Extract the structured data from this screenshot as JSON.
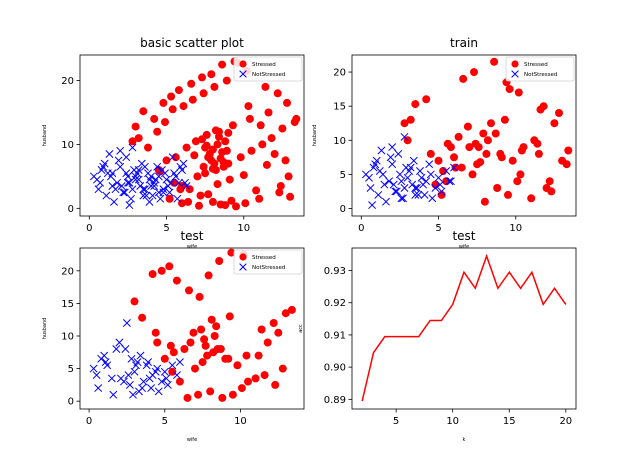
{
  "chart_data": [
    {
      "type": "scatter",
      "title": "basic scatter plot",
      "xlabel": "wife",
      "ylabel": "husband",
      "xlim": [
        -0.6,
        13.9
      ],
      "ylim": [
        -1.2,
        24
      ],
      "xticks": [
        0,
        5,
        10
      ],
      "yticks": [
        0,
        10,
        20
      ],
      "legend": "top-right",
      "series": [
        {
          "name": "Stressed",
          "marker": "circle",
          "color": "#ff0000",
          "x": [
            6.5,
            7.2,
            8.0,
            8.8,
            9.5,
            10.1,
            11.0,
            12.3,
            13.0,
            5.5,
            6.0,
            7.0,
            7.5,
            8.2,
            8.7,
            9.0,
            9.8,
            10.5,
            11.2,
            11.8,
            12.5,
            13.3,
            4.5,
            5.0,
            5.6,
            6.3,
            6.9,
            7.6,
            8.4,
            9.3,
            10.4,
            11.6,
            12.8,
            3.0,
            3.5,
            4.2,
            4.8,
            5.3,
            5.8,
            6.6,
            7.3,
            7.9,
            8.6,
            9.4,
            10.2,
            11.4,
            12.2,
            13.4,
            2.8,
            3.2,
            3.8,
            4.4,
            4.9,
            5.4,
            6.1,
            6.7,
            7.4,
            8.1,
            8.9,
            9.6,
            10.3,
            11.1,
            12.0,
            12.7,
            5.2,
            6.4,
            7.7,
            8.3,
            9.1,
            10.0,
            11.5,
            12.9,
            6.0,
            7.1,
            8.5,
            9.2,
            4.6,
            5.9,
            10.8,
            12.4,
            7.8,
            8.0,
            8.3,
            7.9,
            8.6,
            8.4,
            8.1,
            7.6,
            8.8,
            7.4,
            8.2,
            7.7,
            8.9,
            8.0,
            7.3,
            8.5,
            6.8,
            9.0,
            7.5,
            8.7
          ],
          "y": [
            3.0,
            2.0,
            1.0,
            0.5,
            0.3,
            0.8,
            1.5,
            2.5,
            1.8,
            4.0,
            3.5,
            5.0,
            5.5,
            6.0,
            6.5,
            7.0,
            8.0,
            9.0,
            10.0,
            11.0,
            12.5,
            13.5,
            6.0,
            7.5,
            8.0,
            9.5,
            10.5,
            11.5,
            12.0,
            13.0,
            14.0,
            15.0,
            16.5,
            12.8,
            15.2,
            14.0,
            16.5,
            17.5,
            18.5,
            19.5,
            20.5,
            21.0,
            22.5,
            23.0,
            21.5,
            19.0,
            18.0,
            14.0,
            10.5,
            11.0,
            9.5,
            12.0,
            13.5,
            15.5,
            16.0,
            17.0,
            18.0,
            19.0,
            20.0,
            22.8,
            16.0,
            13.0,
            8.5,
            7.5,
            1.5,
            1.0,
            2.2,
            3.8,
            4.5,
            5.2,
            6.8,
            5.0,
            0.8,
            0.4,
            0.6,
            1.2,
            5.8,
            3.0,
            2.8,
            3.5,
            8.5,
            9.2,
            10.0,
            7.5,
            8.8,
            11.2,
            7.0,
            9.8,
            10.5,
            6.5,
            12.2,
            8.0,
            9.0,
            6.2,
            10.8,
            7.8,
            8.3,
            11.8,
            9.5,
            7.2
          ]
        },
        {
          "name": "NotStressed",
          "marker": "x",
          "color": "#0000ff",
          "x": [
            0.3,
            0.5,
            0.8,
            1.0,
            1.2,
            1.5,
            1.8,
            2.0,
            2.3,
            2.5,
            2.8,
            3.0,
            3.2,
            3.5,
            3.8,
            4.0,
            4.2,
            4.5,
            4.8,
            5.0,
            5.2,
            5.5,
            5.8,
            6.0,
            6.3,
            0.6,
            1.1,
            1.6,
            2.1,
            2.6,
            3.1,
            3.6,
            4.1,
            4.6,
            5.1,
            5.6,
            6.1,
            0.9,
            1.4,
            1.9,
            2.4,
            2.9,
            3.4,
            3.9,
            4.4,
            4.9,
            5.4,
            5.9,
            2.2,
            2.7,
            3.3,
            3.7,
            4.3,
            4.7,
            5.3,
            1.3,
            2.0,
            2.8,
            3.5,
            4.0,
            4.8,
            2.5,
            3.0,
            3.6,
            4.2,
            1.7,
            2.4,
            3.2,
            3.9,
            4.5,
            0.7,
            1.5,
            2.6,
            5.7,
            6.2
          ],
          "y": [
            5.0,
            4.5,
            6.0,
            7.0,
            5.5,
            3.5,
            4.0,
            6.5,
            2.5,
            5.0,
            3.0,
            4.5,
            6.0,
            2.0,
            5.5,
            3.5,
            4.0,
            5.0,
            3.0,
            4.5,
            2.5,
            5.5,
            4.0,
            6.0,
            3.5,
            3.0,
            2.0,
            1.0,
            3.5,
            4.0,
            5.5,
            3.0,
            2.0,
            1.5,
            3.5,
            5.0,
            7.0,
            6.5,
            5.0,
            7.5,
            8.0,
            6.0,
            7.0,
            4.5,
            6.5,
            5.5,
            8.0,
            6.5,
            2.5,
            1.5,
            3.5,
            2.0,
            4.5,
            6.0,
            4.0,
            8.5,
            9.0,
            9.5,
            3.0,
            5.0,
            2.5,
            4.0,
            5.0,
            6.5,
            3.5,
            3.0,
            5.5,
            4.5,
            1.0,
            2.5,
            4.0,
            5.5,
            0.5,
            1.5,
            4.0
          ]
        }
      ]
    },
    {
      "type": "scatter",
      "title": "train",
      "xlabel": "wife",
      "ylabel": "husband",
      "xlim": [
        -0.6,
        13.9
      ],
      "ylim": [
        -1.1,
        22.5
      ],
      "xticks": [
        0,
        5,
        10
      ],
      "yticks": [
        0,
        5,
        10,
        15,
        20
      ],
      "legend": "top-right",
      "series": [
        {
          "name": "Stressed",
          "marker": "circle",
          "color": "#ff0000",
          "x": [
            6.5,
            7.2,
            8.0,
            8.8,
            9.5,
            10.1,
            11.0,
            12.3,
            13.0,
            5.5,
            6.0,
            7.0,
            7.5,
            8.2,
            8.7,
            9.0,
            9.8,
            10.5,
            11.2,
            11.8,
            12.5,
            13.3,
            4.5,
            5.0,
            5.6,
            6.3,
            6.9,
            7.6,
            8.4,
            9.3,
            10.4,
            11.6,
            12.8,
            3.0,
            3.5,
            4.2,
            4.8,
            5.3,
            5.8,
            6.6,
            7.3,
            7.9,
            8.6,
            9.4,
            10.2,
            11.4,
            12.2,
            13.4,
            2.8,
            3.2,
            6.1,
            7.4,
            8.1,
            9.6,
            10.3,
            12.0,
            5.2,
            7.7,
            9.1,
            11.5
          ],
          "y": [
            6.0,
            5.0,
            1.0,
            3.0,
            2.0,
            4.0,
            1.5,
            2.5,
            7.0,
            4.0,
            7.5,
            9.0,
            6.5,
            10.0,
            11.0,
            8.0,
            7.0,
            9.0,
            10.0,
            15.0,
            12.5,
            6.5,
            8.0,
            7.0,
            9.5,
            10.5,
            12.0,
            9.0,
            12.5,
            13.0,
            8.5,
            14.5,
            14.0,
            10.0,
            15.3,
            16.0,
            3.5,
            5.5,
            9.0,
            19.0,
            20.0,
            11.0,
            21.5,
            18.5,
            17.0,
            9.5,
            4.0,
            8.5,
            12.5,
            13.0,
            6.0,
            9.5,
            8.0,
            17.5,
            5.0,
            3.0,
            2.0,
            6.8,
            7.5,
            8.0
          ]
        },
        {
          "name": "NotStressed",
          "marker": "x",
          "color": "#0000ff",
          "x": [
            0.3,
            0.5,
            0.8,
            1.0,
            1.2,
            1.5,
            1.8,
            2.0,
            2.3,
            2.5,
            2.8,
            3.0,
            3.2,
            3.5,
            3.8,
            4.0,
            4.2,
            4.5,
            4.8,
            5.0,
            5.2,
            5.5,
            5.8,
            6.0,
            0.6,
            1.1,
            1.6,
            2.1,
            2.6,
            3.1,
            3.6,
            4.1,
            4.6,
            5.1,
            0.9,
            1.4,
            1.9,
            2.4,
            2.9,
            3.4,
            3.9,
            4.4,
            2.2,
            2.7,
            3.3,
            3.7,
            1.3,
            2.0,
            2.8,
            3.5,
            0.7,
            2.6,
            5.7
          ],
          "y": [
            5.0,
            4.5,
            6.0,
            7.0,
            5.5,
            3.5,
            4.0,
            6.5,
            2.5,
            5.0,
            3.0,
            4.5,
            6.0,
            2.0,
            5.5,
            3.5,
            4.0,
            5.0,
            3.0,
            4.5,
            2.5,
            5.5,
            4.0,
            6.0,
            3.0,
            2.0,
            1.0,
            3.5,
            4.0,
            5.5,
            3.0,
            2.0,
            1.5,
            3.5,
            6.5,
            5.0,
            7.5,
            8.0,
            6.0,
            7.0,
            4.5,
            6.5,
            2.5,
            1.5,
            3.5,
            2.0,
            8.5,
            9.0,
            10.5,
            3.0,
            0.5,
            1.5,
            4.0
          ]
        }
      ]
    },
    {
      "type": "scatter",
      "title": "test",
      "xlabel": "wife",
      "ylabel": "husband",
      "xlim": [
        -0.6,
        14.2
      ],
      "ylim": [
        -1.2,
        23.5
      ],
      "xticks": [
        0,
        5,
        10
      ],
      "yticks": [
        0,
        5,
        10,
        15,
        20
      ],
      "legend": "top-right",
      "series": [
        {
          "name": "Stressed",
          "marker": "circle",
          "color": "#ff0000",
          "x": [
            3.0,
            3.5,
            4.2,
            4.8,
            5.3,
            5.8,
            6.6,
            7.3,
            7.9,
            8.6,
            9.4,
            10.2,
            11.4,
            12.2,
            13.4,
            4.5,
            5.0,
            5.6,
            6.3,
            6.9,
            7.6,
            8.4,
            9.3,
            10.4,
            11.6,
            12.8,
            6.5,
            7.2,
            8.0,
            8.8,
            9.5,
            10.1,
            11.0,
            12.3,
            13.0,
            5.5,
            6.0,
            7.0,
            7.5,
            8.2,
            8.7,
            9.0,
            9.8,
            10.5,
            11.2,
            11.8,
            12.5,
            4.4,
            5.4,
            6.7,
            7.8,
            8.5,
            9.2,
            7.4,
            8.3,
            7.7,
            8.1
          ],
          "y": [
            15.3,
            12.8,
            19.5,
            20.0,
            20.7,
            18.5,
            17.0,
            16.0,
            19.3,
            21.5,
            22.8,
            22.5,
            11.0,
            12.0,
            14.0,
            9.0,
            6.5,
            7.5,
            8.0,
            10.5,
            9.5,
            11.5,
            13.0,
            7.0,
            4.0,
            5.0,
            0.5,
            1.0,
            1.5,
            0.5,
            1.0,
            2.0,
            3.5,
            2.5,
            13.5,
            4.5,
            3.0,
            5.0,
            6.0,
            7.5,
            8.0,
            6.5,
            5.5,
            3.0,
            7.0,
            9.0,
            10.5,
            10.5,
            8.5,
            9.0,
            7.0,
            8.0,
            6.5,
            11.0,
            10.0,
            8.5,
            12.5
          ]
        },
        {
          "name": "NotStressed",
          "marker": "x",
          "color": "#0000ff",
          "x": [
            0.3,
            0.5,
            0.8,
            1.0,
            1.2,
            1.5,
            1.8,
            2.0,
            2.3,
            2.5,
            2.8,
            3.0,
            3.2,
            3.5,
            3.8,
            4.0,
            4.2,
            4.5,
            4.8,
            5.0,
            5.2,
            5.5,
            5.8,
            6.0,
            0.6,
            1.1,
            1.6,
            2.1,
            2.6,
            3.1,
            3.6,
            4.1,
            4.6,
            5.1,
            2.4,
            2.9,
            3.4,
            3.9,
            4.4,
            2.7,
            3.3
          ],
          "y": [
            5.0,
            4.0,
            6.5,
            7.0,
            5.5,
            3.5,
            8.0,
            9.0,
            3.0,
            12.0,
            6.5,
            4.5,
            6.0,
            2.0,
            5.5,
            3.5,
            4.0,
            5.0,
            3.0,
            4.5,
            2.5,
            5.5,
            4.0,
            6.0,
            2.0,
            6.0,
            1.0,
            3.5,
            4.0,
            5.5,
            3.0,
            2.0,
            1.5,
            3.5,
            8.0,
            1.0,
            7.0,
            6.0,
            4.5,
            2.5,
            1.5
          ]
        }
      ]
    },
    {
      "type": "line",
      "title": "test",
      "xlabel": "k",
      "ylabel": "acc",
      "xlim": [
        1.1,
        20.9
      ],
      "ylim": [
        0.887,
        0.937
      ],
      "xticks": [
        5,
        10,
        15,
        20
      ],
      "yticks": [
        0.89,
        0.9,
        0.91,
        0.92,
        0.93
      ],
      "ytick_labels": [
        "0.89",
        "0.90",
        "0.91",
        "0.92",
        "0.93"
      ],
      "series": [
        {
          "color": "#ff0000",
          "x": [
            2,
            3,
            4,
            5,
            6,
            7,
            8,
            9,
            10,
            11,
            12,
            13,
            14,
            15,
            16,
            17,
            18,
            19,
            20
          ],
          "y": [
            0.8895,
            0.9045,
            0.9095,
            0.9095,
            0.9095,
            0.9095,
            0.9145,
            0.9145,
            0.9195,
            0.9295,
            0.9245,
            0.9345,
            0.9245,
            0.9295,
            0.9245,
            0.9295,
            0.9195,
            0.9245,
            0.9195
          ]
        }
      ]
    }
  ]
}
